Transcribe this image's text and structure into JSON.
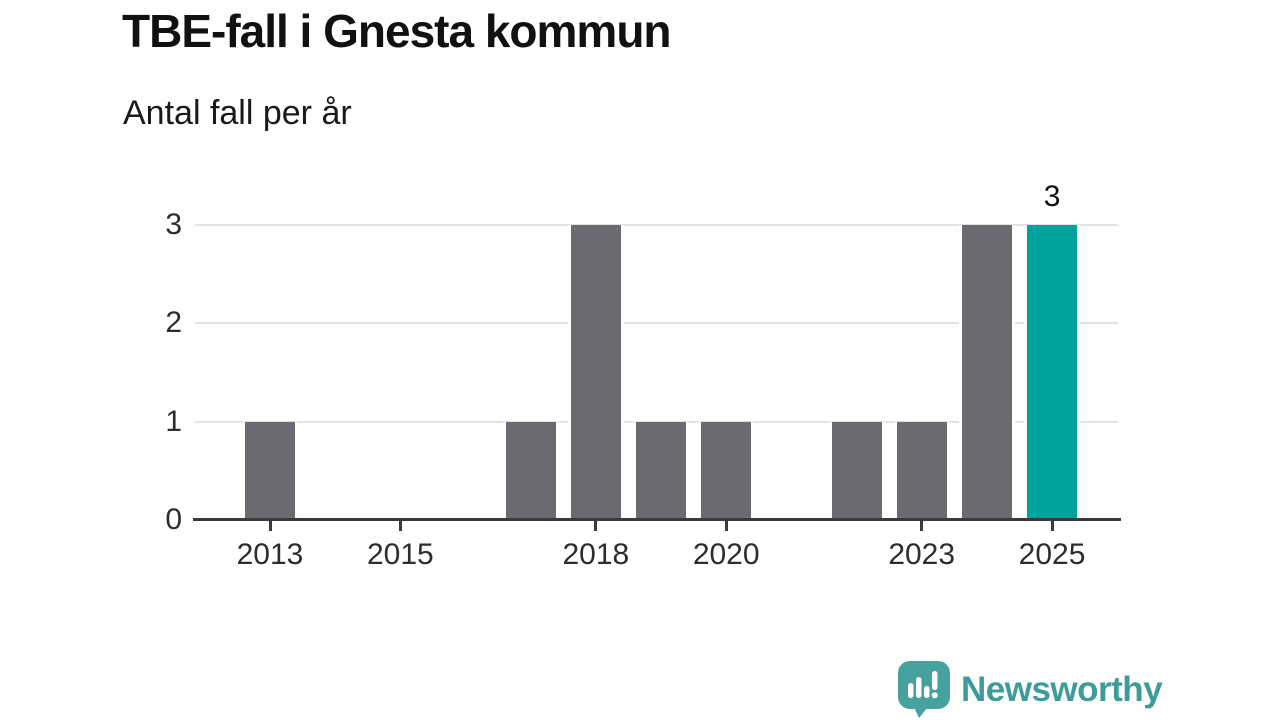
{
  "header": {
    "title": "TBE-fall i Gnesta kommun",
    "subtitle": "Antal fall per år"
  },
  "chart_data": {
    "type": "bar",
    "title": "TBE-fall i Gnesta kommun",
    "subtitle": "Antal fall per år",
    "xlabel": "",
    "ylabel": "Antal fall per år",
    "categories": [
      "2013",
      "2014",
      "2015",
      "2016",
      "2017",
      "2018",
      "2019",
      "2020",
      "2021",
      "2022",
      "2023",
      "2024",
      "2025"
    ],
    "values": [
      1,
      0,
      0,
      0,
      1,
      3,
      1,
      1,
      0,
      1,
      1,
      3,
      3
    ],
    "ylim": [
      0,
      3
    ],
    "yticks": [
      0,
      1,
      2,
      3
    ],
    "xtick_labels": [
      "2013",
      "2015",
      "2018",
      "2020",
      "2023",
      "2025"
    ],
    "grid": true,
    "legend_position": "none",
    "highlight_category": "2025",
    "annotations": [
      {
        "category": "2025",
        "text": "3"
      }
    ],
    "colors": {
      "bar": "#6c6a71",
      "highlight": "#00a39b"
    }
  },
  "footer": {
    "logo_text": "Newsworthy"
  },
  "colors": {
    "background": "#ffffff",
    "title": "#111111",
    "subtitle": "#1a1a1a",
    "axis_line": "#3a3a3a",
    "grid_line": "#e3e3e3",
    "tick_label": "#2d2d2d",
    "annotation": "#111111",
    "logo_bubble": "#47a19e",
    "logo_text": "#3d9c99"
  }
}
